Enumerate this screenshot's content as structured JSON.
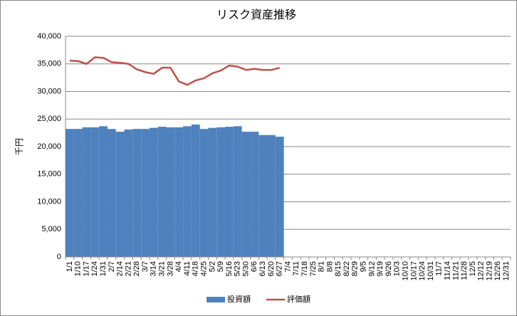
{
  "chart_data": {
    "type": "bar_line",
    "title": "リスク資産推移",
    "y_label": "千円",
    "categories": [
      "1/1",
      "1/10",
      "1/17",
      "1/24",
      "1/31",
      "2/7",
      "2/14",
      "2/21",
      "2/28",
      "3/7",
      "3/14",
      "3/21",
      "3/28",
      "4/4",
      "4/11",
      "4/18",
      "4/25",
      "5/2",
      "5/9",
      "5/16",
      "5/23",
      "5/30",
      "6/6",
      "6/13",
      "6/20",
      "6/27",
      "7/4",
      "7/11",
      "7/18",
      "7/25",
      "8/1",
      "8/8",
      "8/15",
      "8/22",
      "8/29",
      "9/5",
      "9/12",
      "9/19",
      "9/26",
      "10/3",
      "10/10",
      "10/17",
      "10/24",
      "10/31",
      "11/7",
      "11/14",
      "11/21",
      "11/28",
      "12/5",
      "12/12",
      "12/19",
      "12/26",
      "12/31"
    ],
    "series": [
      {
        "name": "投資額",
        "type": "bar",
        "color": "#4f81bd",
        "values": [
          23200,
          23200,
          23500,
          23500,
          23700,
          23200,
          22700,
          23100,
          23200,
          23200,
          23400,
          23600,
          23500,
          23500,
          23700,
          24000,
          23200,
          23400,
          23500,
          23600,
          23700,
          22700,
          22700,
          22100,
          22100,
          21800,
          null,
          null,
          null,
          null,
          null,
          null,
          null,
          null,
          null,
          null,
          null,
          null,
          null,
          null,
          null,
          null,
          null,
          null,
          null,
          null,
          null,
          null,
          null,
          null,
          null,
          null,
          null
        ]
      },
      {
        "name": "評価額",
        "type": "line",
        "color": "#c0504d",
        "values": [
          35600,
          35500,
          35000,
          36200,
          36100,
          35300,
          35200,
          35000,
          34000,
          33500,
          33200,
          34300,
          34300,
          31800,
          31200,
          32000,
          32400,
          33300,
          33800,
          34700,
          34500,
          33900,
          34100,
          33900,
          33900,
          34300,
          null,
          null,
          null,
          null,
          null,
          null,
          null,
          null,
          null,
          null,
          null,
          null,
          null,
          null,
          null,
          null,
          null,
          null,
          null,
          null,
          null,
          null,
          null,
          null,
          null,
          null,
          null
        ]
      }
    ],
    "ylim": [
      0,
      40000
    ],
    "yticks": [
      0,
      {
        "value": 5000,
        "label": "5,000"
      },
      {
        "value": 10000,
        "label": "10,000"
      },
      {
        "value": 15000,
        "label": "15,000"
      },
      {
        "value": 20000,
        "label": "20,000"
      },
      {
        "value": 25000,
        "label": "25,000"
      },
      {
        "value": 30000,
        "label": "30,000"
      },
      {
        "value": 35000,
        "label": "35,000"
      },
      {
        "value": 40000,
        "label": "40,000"
      }
    ],
    "grid": true,
    "legend": "bottom"
  }
}
